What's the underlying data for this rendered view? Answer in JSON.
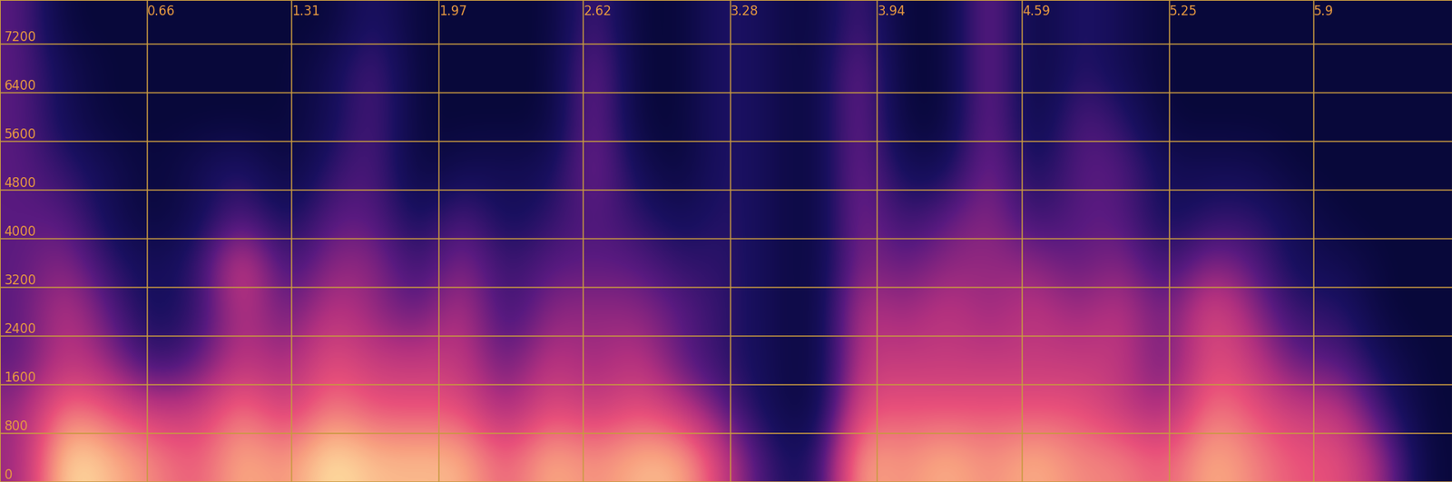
{
  "chart_data": {
    "type": "heatmap",
    "xlim": [
      0,
      6.52
    ],
    "ylim": [
      0,
      7920
    ],
    "xticks": [
      0.66,
      1.31,
      1.97,
      2.62,
      3.28,
      3.94,
      4.59,
      5.25,
      5.9
    ],
    "yticks": [
      0,
      800,
      1600,
      2400,
      3200,
      4000,
      4800,
      5600,
      6400,
      7200
    ],
    "grid": true,
    "cells": [
      [
        5,
        10,
        9,
        8,
        7,
        9,
        8,
        10,
        9,
        9,
        9,
        7,
        9,
        8,
        9,
        9,
        6,
        3,
        2,
        9,
        8,
        9,
        8,
        9,
        8,
        8,
        7,
        9,
        8,
        7,
        7,
        5,
        1
      ],
      [
        5,
        8,
        7,
        6,
        6,
        8,
        6,
        8,
        7,
        7,
        7,
        5,
        7,
        6,
        7,
        6,
        4,
        2,
        1,
        7,
        7,
        7,
        7,
        7,
        7,
        6,
        5,
        8,
        7,
        6,
        6,
        3,
        1
      ],
      [
        4,
        6,
        5,
        3,
        4,
        6,
        5,
        7,
        6,
        6,
        6,
        4,
        6,
        5,
        6,
        4,
        3,
        2,
        1,
        6,
        6,
        6,
        6,
        6,
        6,
        6,
        4,
        7,
        6,
        4,
        4,
        2,
        1
      ],
      [
        4,
        6,
        4,
        2,
        3,
        6,
        4,
        6,
        5,
        4,
        6,
        3,
        5,
        5,
        5,
        4,
        3,
        2,
        1,
        6,
        5,
        6,
        5,
        6,
        5,
        6,
        4,
        7,
        5,
        3,
        3,
        1,
        1
      ],
      [
        4,
        5,
        3,
        2,
        3,
        7,
        3,
        5,
        5,
        3,
        5,
        3,
        4,
        4,
        4,
        3,
        3,
        2,
        1,
        5,
        4,
        5,
        5,
        5,
        4,
        5,
        3,
        5,
        4,
        2,
        2,
        1,
        1
      ],
      [
        4,
        4,
        2,
        1,
        2,
        4,
        2,
        4,
        4,
        2,
        4,
        2,
        3,
        4,
        3,
        2,
        3,
        2,
        1,
        5,
        3,
        4,
        5,
        3,
        4,
        4,
        2,
        3,
        3,
        2,
        1,
        1,
        1
      ],
      [
        4,
        3,
        2,
        1,
        2,
        3,
        1,
        3,
        4,
        1,
        2,
        2,
        2,
        5,
        2,
        1,
        3,
        2,
        1,
        5,
        2,
        2,
        5,
        2,
        4,
        4,
        2,
        2,
        2,
        1,
        1,
        1,
        1
      ],
      [
        4,
        2,
        1,
        1,
        1,
        1,
        1,
        2,
        4,
        1,
        1,
        1,
        1,
        5,
        1,
        1,
        3,
        2,
        1,
        5,
        1,
        1,
        5,
        1,
        4,
        3,
        1,
        1,
        1,
        1,
        1,
        1,
        1
      ],
      [
        4,
        2,
        1,
        1,
        1,
        1,
        1,
        2,
        4,
        1,
        1,
        1,
        1,
        5,
        1,
        1,
        3,
        2,
        1,
        5,
        1,
        1,
        5,
        1,
        3,
        2,
        1,
        1,
        1,
        1,
        1,
        1,
        1
      ],
      [
        4,
        1,
        1,
        1,
        1,
        1,
        1,
        1,
        3,
        1,
        1,
        1,
        1,
        4,
        1,
        1,
        3,
        2,
        1,
        4,
        1,
        1,
        5,
        1,
        3,
        2,
        1,
        1,
        1,
        1,
        1,
        1,
        1
      ]
    ]
  }
}
